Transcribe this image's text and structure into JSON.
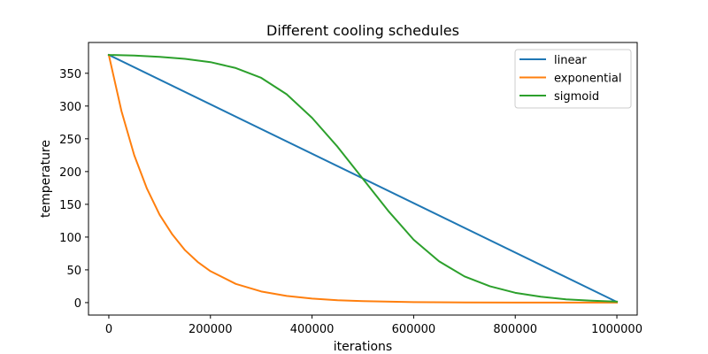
{
  "chart_data": {
    "type": "line",
    "title": "Different cooling schedules",
    "xlabel": "iterations",
    "ylabel": "temperature",
    "xlim": [
      -40000,
      1040000
    ],
    "ylim": [
      -19,
      397
    ],
    "xticks": [
      0,
      200000,
      400000,
      600000,
      800000,
      1000000
    ],
    "xtick_labels": [
      "0",
      "200000",
      "400000",
      "600000",
      "800000",
      "1000000"
    ],
    "yticks": [
      0,
      50,
      100,
      150,
      200,
      250,
      300,
      350
    ],
    "ytick_labels": [
      "0",
      "50",
      "100",
      "150",
      "200",
      "250",
      "300",
      "350"
    ],
    "grid": false,
    "legend_position": "top-right",
    "series": [
      {
        "name": "linear",
        "color": "#1f77b4",
        "x": [
          0,
          1000000
        ],
        "y": [
          378,
          1
        ]
      },
      {
        "name": "exponential",
        "color": "#ff7f0e",
        "x": [
          0,
          25000,
          50000,
          75000,
          100000,
          125000,
          150000,
          175000,
          200000,
          250000,
          300000,
          350000,
          400000,
          450000,
          500000,
          600000,
          700000,
          800000,
          900000,
          1000000
        ],
        "y": [
          378,
          292,
          225,
          174,
          134,
          104,
          80,
          62,
          48,
          28.5,
          17,
          10.2,
          6.1,
          3.6,
          2.2,
          0.8,
          0.3,
          0.1,
          0.05,
          0.02
        ]
      },
      {
        "name": "sigmoid",
        "color": "#2ca02c",
        "x": [
          0,
          50000,
          100000,
          150000,
          200000,
          250000,
          300000,
          350000,
          400000,
          450000,
          500000,
          550000,
          600000,
          650000,
          700000,
          750000,
          800000,
          850000,
          900000,
          950000,
          1000000
        ],
        "y": [
          378,
          377,
          375,
          372,
          367,
          358,
          343,
          318,
          282,
          238,
          189,
          140,
          96,
          63,
          40,
          25,
          15,
          9,
          5,
          3,
          1.5
        ]
      }
    ]
  }
}
